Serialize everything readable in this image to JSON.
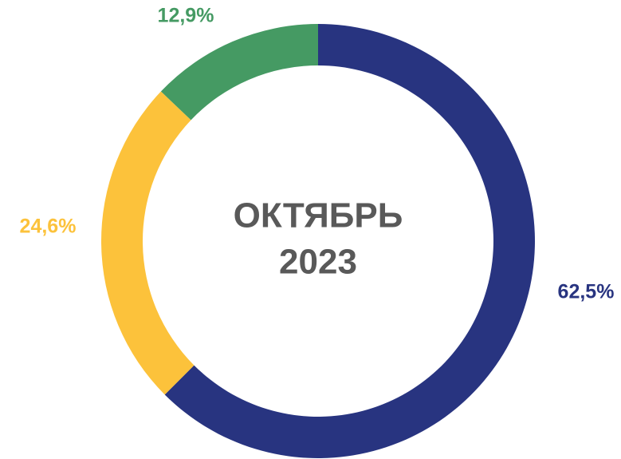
{
  "chart_data": {
    "type": "donut",
    "title_lines": [
      "ОКТЯБРЬ",
      "2023"
    ],
    "categories": [
      null,
      null,
      null
    ],
    "values": [
      62.5,
      24.6,
      12.9
    ],
    "value_labels": [
      "62,5%",
      "24,6%",
      "12,9%"
    ],
    "colors": [
      "#283480",
      "#fcc23b",
      "#459a63"
    ]
  }
}
